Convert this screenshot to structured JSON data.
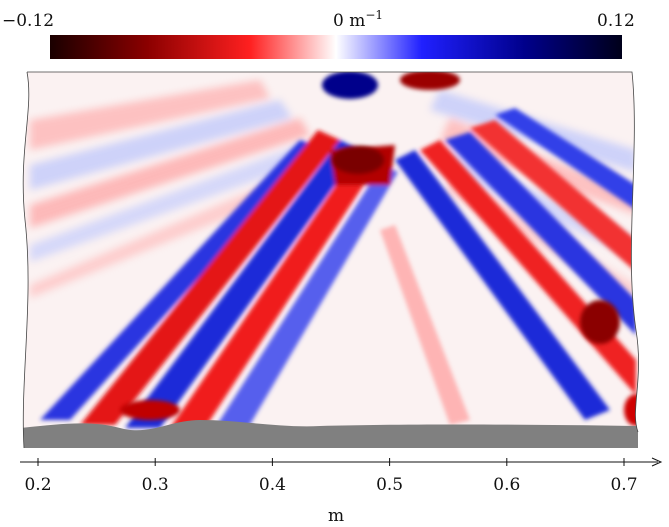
{
  "colorbar": {
    "min_label": "−0.12",
    "mid_label": "0 m",
    "mid_exponent": "−1",
    "max_label": "0.12",
    "min_value": -0.12,
    "max_value": 0.12,
    "colormap": "seismic",
    "colors": [
      "#1a0000",
      "#8b0000",
      "#ff2020",
      "#ffffff",
      "#2020ff",
      "#00008b",
      "#00001a"
    ]
  },
  "colors": {
    "ground": "#808080",
    "axis": "#111111"
  },
  "chart_data": {
    "type": "heatmap",
    "title": "",
    "xlabel": "m",
    "ylabel": "",
    "xlim": [
      0.19,
      0.72
    ],
    "x_ticks": [
      0.2,
      0.3,
      0.4,
      0.5,
      0.6,
      0.7
    ],
    "x_tick_labels": [
      "0.2",
      "0.3",
      "0.4",
      "0.5",
      "0.6",
      "0.7"
    ],
    "color_range": [
      -0.12,
      0.12
    ],
    "grid": false
  }
}
